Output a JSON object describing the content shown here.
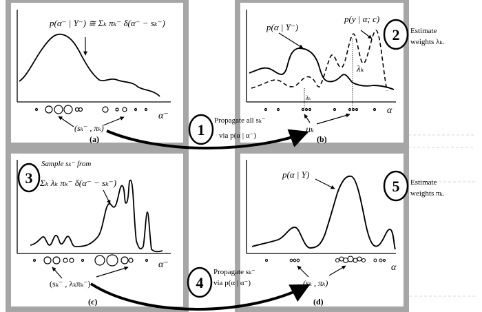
{
  "panels": {
    "a": {
      "label": "(a)",
      "formula": "p(α⁻ | Y⁻) ≅ Σₖ πₖ⁻ δ(α⁻ − sₖ⁻)",
      "axis_label": "α⁻",
      "particle_label": "(sₖ⁻ , πₖ)"
    },
    "b": {
      "label": "(b)",
      "prior_label": "p(α | Y⁻)",
      "likelihood_label": "p(y | α; c)",
      "lambda_label": "λₖ",
      "lambda_small": "λₖ",
      "mu_label": "μₖ",
      "axis_label": "α"
    },
    "c": {
      "label": "(c)",
      "sample_text": "Sample sₖ⁻ from",
      "formula": "Σₖ λₖ πₖ⁻ δ(α⁻ − sₖ⁻)",
      "axis_label": "α⁻",
      "particle_label": "(sₖ⁻ , λₖπₖ⁻)"
    },
    "d": {
      "label": "(d)",
      "posterior_label": "p(α | Y)",
      "axis_label": "α",
      "particle_label": "(sₖ , πₖ)"
    }
  },
  "steps": [
    {
      "number": "1",
      "text_line1": "Propagate all sₖ⁻",
      "text_line2": "via p(α | α⁻)"
    },
    {
      "number": "2",
      "text_line1": "Estimate",
      "text_line2": "weights λₖ."
    },
    {
      "number": "3",
      "text_line1": "",
      "text_line2": ""
    },
    {
      "number": "4",
      "text_line1": "Propagate sₖ⁻",
      "text_line2": "via p(α | α⁻)"
    },
    {
      "number": "5",
      "text_line1": "Estimate",
      "text_line2": "weights πₖ."
    }
  ],
  "colors": {
    "frame": "#a6a6a6",
    "ink": "#000000",
    "background": "#ffffff"
  }
}
